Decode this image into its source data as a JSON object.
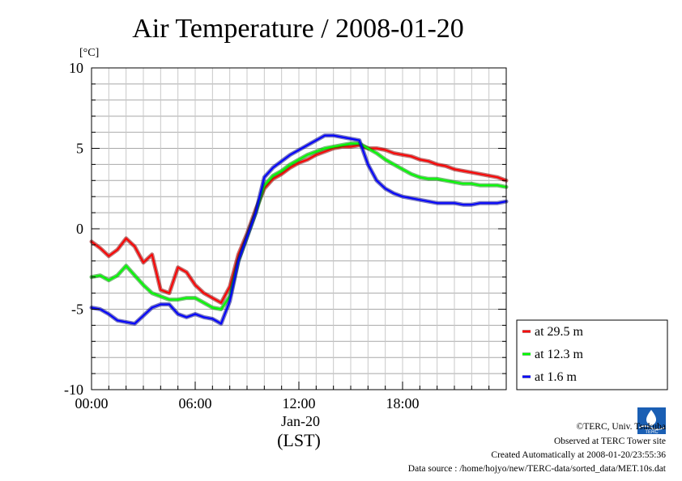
{
  "page": {
    "title": "Air Temperature / 2008-01-20"
  },
  "chart_data": {
    "type": "line",
    "title": "Air Temperature / 2008-01-20",
    "ylabel": "[°C]",
    "xlabel": "(LST)",
    "date_label": "Jan-20",
    "x_unit": "hour",
    "xlim": [
      0,
      24
    ],
    "ylim": [
      -10,
      10
    ],
    "x_ticks": [
      {
        "value": 0,
        "label": "00:00"
      },
      {
        "value": 6,
        "label": "06:00"
      },
      {
        "value": 12,
        "label": "12:00"
      },
      {
        "value": 18,
        "label": "18:00"
      }
    ],
    "y_ticks": [
      {
        "value": 10,
        "label": "10"
      },
      {
        "value": 5,
        "label": "5"
      },
      {
        "value": 0,
        "label": "0"
      },
      {
        "value": -5,
        "label": "-5"
      },
      {
        "value": -10,
        "label": "-10"
      }
    ],
    "grid": true,
    "legend_position": "right-bottom",
    "series": [
      {
        "name": "at 29.5 m",
        "color": "#ff0000",
        "x": [
          0,
          0.5,
          1,
          1.5,
          2,
          2.5,
          3,
          3.5,
          4,
          4.5,
          5,
          5.5,
          6,
          6.5,
          7,
          7.5,
          8,
          8.5,
          9,
          9.5,
          10,
          10.5,
          11,
          11.5,
          12,
          12.5,
          13,
          13.5,
          14,
          14.5,
          15,
          15.5,
          16,
          16.5,
          17,
          17.5,
          18,
          18.5,
          19,
          19.5,
          20,
          20.5,
          21,
          21.5,
          22,
          22.5,
          23,
          23.5,
          24
        ],
        "values": [
          -0.8,
          -1.2,
          -1.7,
          -1.3,
          -0.6,
          -1.1,
          -2.1,
          -1.6,
          -3.8,
          -4.0,
          -2.4,
          -2.7,
          -3.5,
          -4.0,
          -4.3,
          -4.6,
          -3.6,
          -1.6,
          -0.3,
          1.2,
          2.5,
          3.1,
          3.4,
          3.8,
          4.1,
          4.3,
          4.6,
          4.8,
          5.0,
          5.1,
          5.1,
          5.2,
          5.0,
          5.0,
          4.9,
          4.7,
          4.6,
          4.5,
          4.3,
          4.2,
          4.0,
          3.9,
          3.7,
          3.6,
          3.5,
          3.4,
          3.3,
          3.2,
          3.0
        ]
      },
      {
        "name": "at 12.3 m",
        "color": "#00ff00",
        "x": [
          0,
          0.5,
          1,
          1.5,
          2,
          2.5,
          3,
          3.5,
          4,
          4.5,
          5,
          5.5,
          6,
          6.5,
          7,
          7.5,
          8,
          8.5,
          9,
          9.5,
          10,
          10.5,
          11,
          11.5,
          12,
          12.5,
          13,
          13.5,
          14,
          14.5,
          15,
          15.5,
          16,
          16.5,
          17,
          17.5,
          18,
          18.5,
          19,
          19.5,
          20,
          20.5,
          21,
          21.5,
          22,
          22.5,
          23,
          23.5,
          24
        ],
        "values": [
          -3.0,
          -2.9,
          -3.2,
          -2.9,
          -2.3,
          -2.9,
          -3.5,
          -4.0,
          -4.2,
          -4.4,
          -4.4,
          -4.3,
          -4.3,
          -4.6,
          -4.9,
          -5.0,
          -4.2,
          -2.0,
          -0.5,
          1.0,
          2.7,
          3.3,
          3.6,
          4.0,
          4.3,
          4.6,
          4.8,
          5.0,
          5.1,
          5.2,
          5.3,
          5.3,
          5.0,
          4.7,
          4.3,
          4.0,
          3.7,
          3.4,
          3.2,
          3.1,
          3.1,
          3.0,
          2.9,
          2.8,
          2.8,
          2.7,
          2.7,
          2.7,
          2.6
        ]
      },
      {
        "name": "at 1.6 m",
        "color": "#0000ff",
        "x": [
          0,
          0.5,
          1,
          1.5,
          2,
          2.5,
          3,
          3.5,
          4,
          4.5,
          5,
          5.5,
          6,
          6.5,
          7,
          7.5,
          8,
          8.5,
          9,
          9.5,
          10,
          10.5,
          11,
          11.5,
          12,
          12.5,
          13,
          13.5,
          14,
          14.5,
          15,
          15.5,
          16,
          16.5,
          17,
          17.5,
          18,
          18.5,
          19,
          19.5,
          20,
          20.5,
          21,
          21.5,
          22,
          22.5,
          23,
          23.5,
          24
        ],
        "values": [
          -4.9,
          -5.0,
          -5.3,
          -5.7,
          -5.8,
          -5.9,
          -5.4,
          -4.9,
          -4.7,
          -4.7,
          -5.3,
          -5.5,
          -5.3,
          -5.5,
          -5.6,
          -5.9,
          -4.5,
          -2.0,
          -0.5,
          1.0,
          3.2,
          3.8,
          4.2,
          4.6,
          4.9,
          5.2,
          5.5,
          5.8,
          5.8,
          5.7,
          5.6,
          5.5,
          4.0,
          3.0,
          2.5,
          2.2,
          2.0,
          1.9,
          1.8,
          1.7,
          1.6,
          1.6,
          1.6,
          1.5,
          1.5,
          1.6,
          1.6,
          1.6,
          1.7
        ]
      }
    ]
  },
  "footer": {
    "logo_text": "TERC",
    "copyright": "©TERC, Univ. Tsukuba",
    "observed": "Observed at TERC Tower site",
    "created": "Created Automatically at 2008-01-20/23:55:36",
    "source": "Data source : /home/hojyo/new/TERC-data/sorted_data/MET.10s.dat"
  }
}
